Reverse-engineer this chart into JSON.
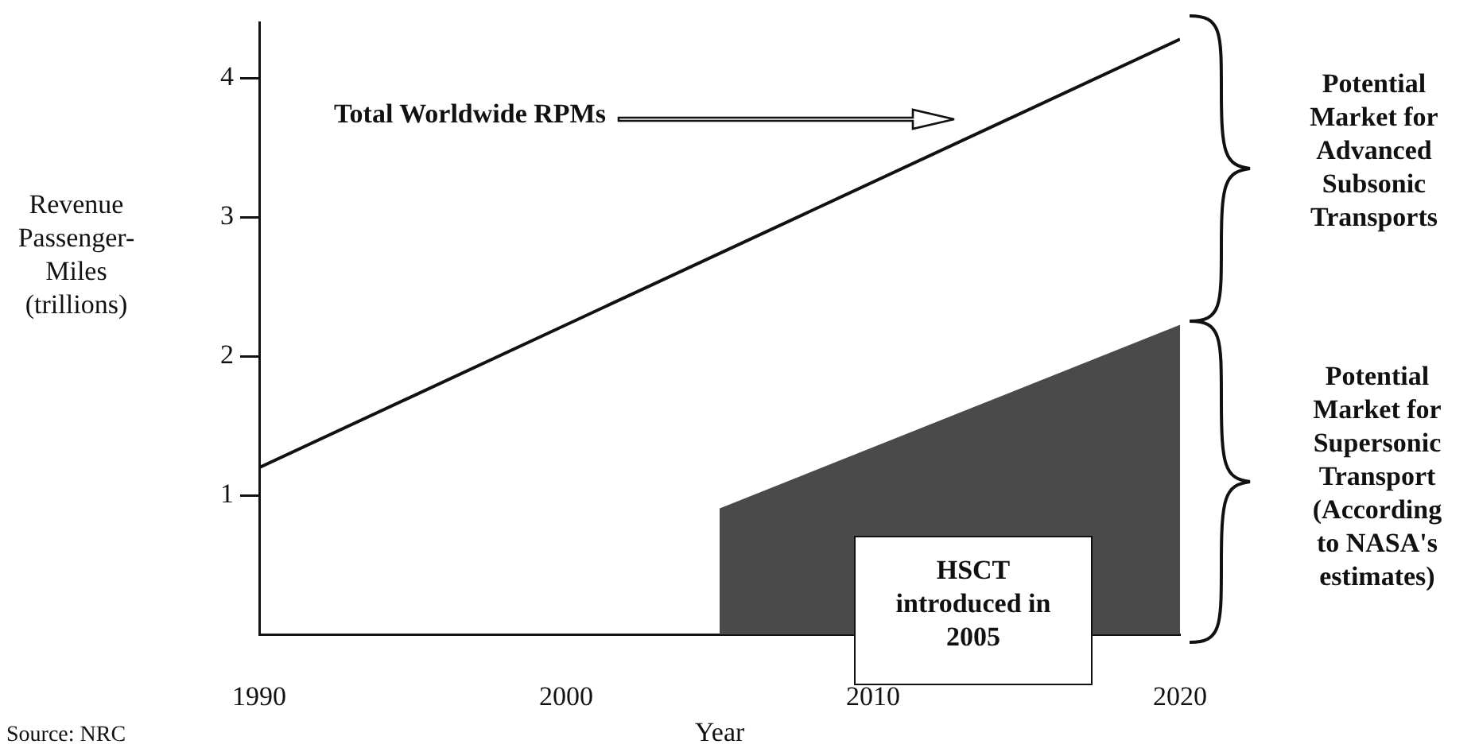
{
  "chart_data": {
    "type": "line",
    "ylabel": "Revenue Passenger-Miles (trillions)",
    "xlabel": "Year",
    "xlim": [
      1990,
      2020
    ],
    "xticks": [
      1990,
      2000,
      2010,
      2020
    ],
    "ylim": [
      0,
      4.4
    ],
    "yticks": [
      1,
      2,
      3,
      4
    ],
    "grid": false,
    "legend": false,
    "series": [
      {
        "color": "#111111",
        "x": [
          1990,
          2020
        ],
        "values": [
          1.2,
          4.28
        ]
      },
      {
        "type": "area",
        "color": "#4a4a4a",
        "x": [
          2005,
          2020
        ],
        "values": [
          0.9,
          2.22
        ]
      }
    ],
    "annotations": [
      "Total Worldwide RPMs",
      "HSCT introduced in 2005",
      "Potential Market for Advanced Subsonic Transports",
      "Potential Market for Supersonic Transport (According to NASA's estimates)",
      "Source:  NRC"
    ]
  }
}
